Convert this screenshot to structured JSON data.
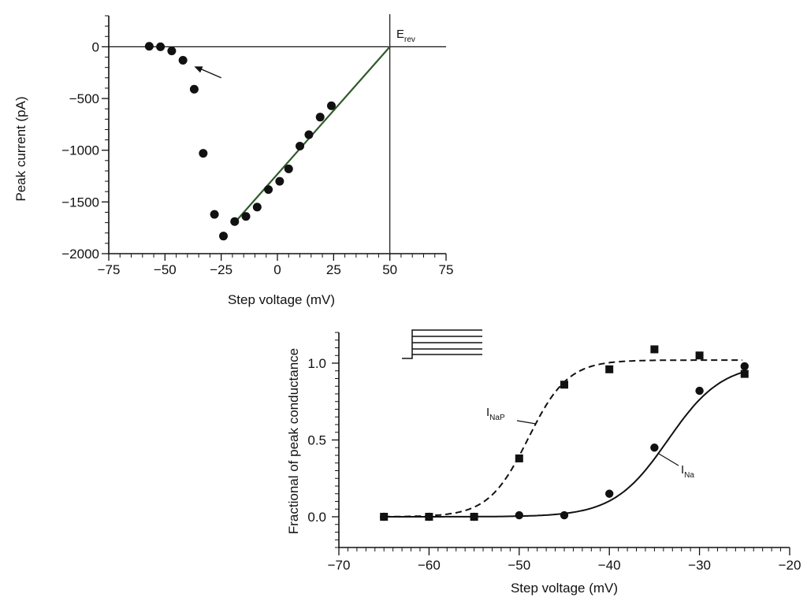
{
  "chart_data": [
    {
      "type": "scatter",
      "title": "",
      "xlabel": "Step voltage (mV)",
      "ylabel": "Peak current (pA)",
      "xlim": [
        -75,
        75
      ],
      "ylim": [
        -2000,
        300
      ],
      "xticks": [
        "−75",
        "−50",
        "−25",
        "0",
        "25",
        "50",
        "75"
      ],
      "yticks": [
        "−2000",
        "−1500",
        "−1000",
        "−500",
        "0"
      ],
      "grid": false,
      "series": [
        {
          "marker": "circle",
          "x": [
            -57,
            -52,
            -47,
            -42,
            -37,
            -33,
            -28,
            -24,
            -19,
            -14,
            -9,
            -4,
            1,
            5,
            10,
            14,
            19,
            24
          ],
          "y": [
            5,
            0,
            -40,
            -130,
            -410,
            -1030,
            -1620,
            -1830,
            -1690,
            -1640,
            -1550,
            -1380,
            -1300,
            -1180,
            -960,
            -850,
            -680,
            -570
          ]
        }
      ],
      "fit_line": {
        "x": [
          -19,
          50
        ],
        "y": [
          -1700,
          0
        ]
      },
      "reference_lines": {
        "x": [
          50
        ],
        "y": [
          0
        ]
      },
      "annotations": [
        {
          "text": "E",
          "subscript": "rev",
          "x": 50,
          "y": 200
        },
        {
          "type": "arrow",
          "from": [
            -25,
            -300
          ],
          "to": [
            -37,
            -190
          ]
        }
      ]
    },
    {
      "type": "scatter",
      "title": "",
      "xlabel": "Step voltage (mV)",
      "ylabel": "Fractional of peak conductance",
      "xlim": [
        -70,
        -20
      ],
      "ylim": [
        -0.2,
        1.2
      ],
      "xticks": [
        "−70",
        "−60",
        "−50",
        "−40",
        "−30",
        "−20"
      ],
      "yticks": [
        "0.0",
        "0.5",
        "1.0"
      ],
      "grid": false,
      "series": [
        {
          "name": "I",
          "subscript": "NaP",
          "marker": "square",
          "line_style": "dashed",
          "fit": {
            "v_half": -49,
            "slope": 2.2,
            "gmax": 1.02
          },
          "x": [
            -65,
            -60,
            -55,
            -50,
            -45,
            -40,
            -35,
            -30,
            -25
          ],
          "y": [
            0.0,
            0.0,
            0.0,
            0.38,
            0.86,
            0.96,
            1.09,
            1.05,
            0.93
          ]
        },
        {
          "name": "I",
          "subscript": "Na",
          "marker": "circle",
          "line_style": "solid",
          "fit": {
            "v_half": -33.5,
            "slope": 3.0,
            "gmax": 1.0
          },
          "x": [
            -65,
            -60,
            -55,
            -50,
            -45,
            -40,
            -35,
            -30,
            -25
          ],
          "y": [
            0.0,
            0.0,
            0.0,
            0.01,
            0.01,
            0.15,
            0.45,
            0.82,
            0.98
          ]
        }
      ],
      "inset": "voltage-step-protocol"
    }
  ]
}
